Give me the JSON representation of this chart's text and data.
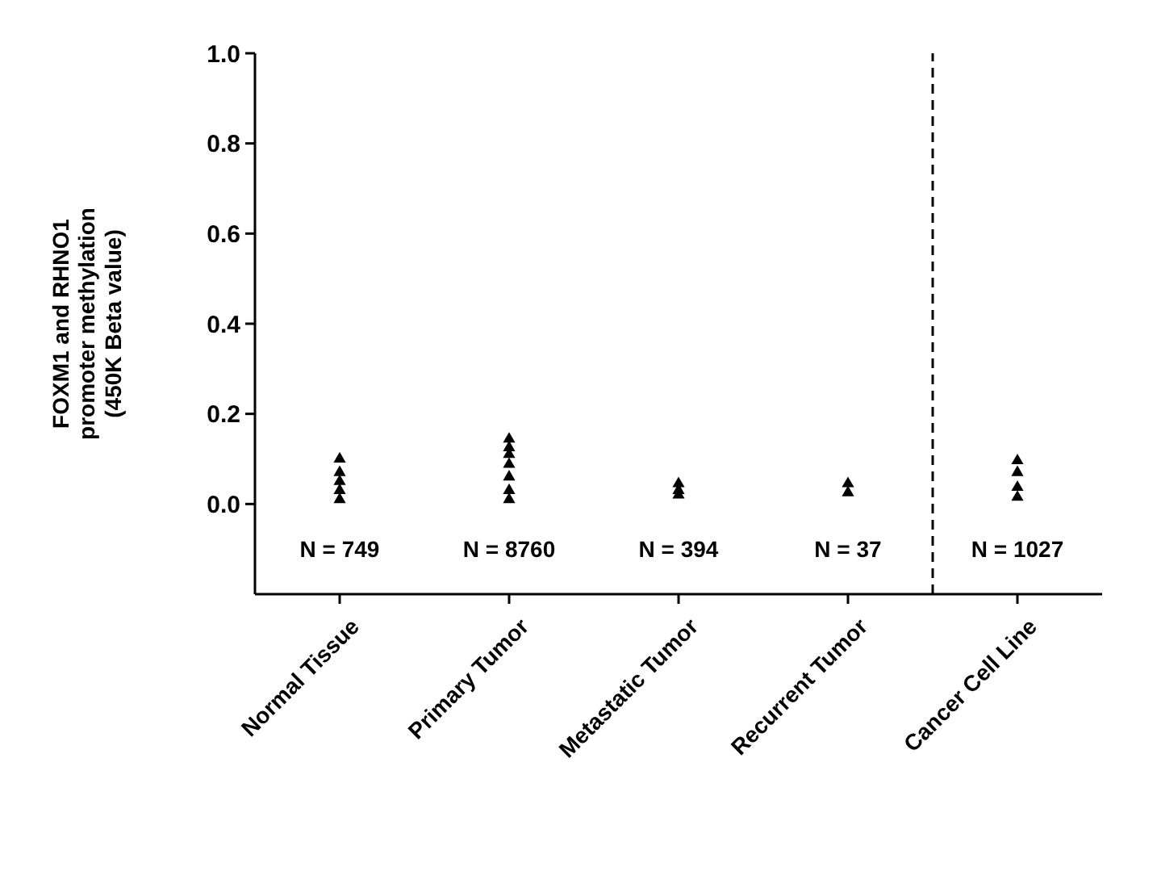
{
  "chart_data": {
    "type": "scatter",
    "ylabel": "FOXM1 and RHNO1\npromoter methylation\n(450K Beta value)",
    "categories": [
      "Normal Tissue",
      "Primary Tumor",
      "Metastatic Tumor",
      "Recurrent Tumor",
      "Cancer Cell Line"
    ],
    "ylim": [
      -0.2,
      1.0
    ],
    "yticks": [
      {
        "value": 0,
        "label": "0.0"
      },
      {
        "value": 0.2,
        "label": "0.2"
      },
      {
        "value": 0.4,
        "label": "0.4"
      },
      {
        "value": 0.6,
        "label": "0.6"
      },
      {
        "value": 0.8,
        "label": "0.8"
      },
      {
        "value": 1,
        "label": "1.0"
      }
    ],
    "marker": "triangle",
    "grid": false,
    "series": [
      {
        "color": "#000000",
        "x": [
          "Normal Tissue",
          "Normal Tissue",
          "Normal Tissue",
          "Normal Tissue",
          "Normal Tissue",
          "Primary Tumor",
          "Primary Tumor",
          "Primary Tumor",
          "Primary Tumor",
          "Primary Tumor",
          "Primary Tumor",
          "Primary Tumor",
          "Metastatic Tumor",
          "Metastatic Tumor",
          "Metastatic Tumor",
          "Recurrent Tumor",
          "Recurrent Tumor",
          "Cancer Cell Line",
          "Cancer Cell Line",
          "Cancer Cell Line",
          "Cancer Cell Line"
        ],
        "values": [
          0.01,
          0.03,
          0.05,
          0.07,
          0.1,
          0.01,
          0.03,
          0.06,
          0.088,
          0.11,
          0.125,
          0.144,
          0.02,
          0.03,
          0.045,
          0.025,
          0.045,
          0.015,
          0.037,
          0.07,
          0.096
        ]
      }
    ],
    "annotations": [
      "N = 749",
      "N = 8760",
      "N = 394",
      "N = 37",
      "N = 1027"
    ]
  }
}
